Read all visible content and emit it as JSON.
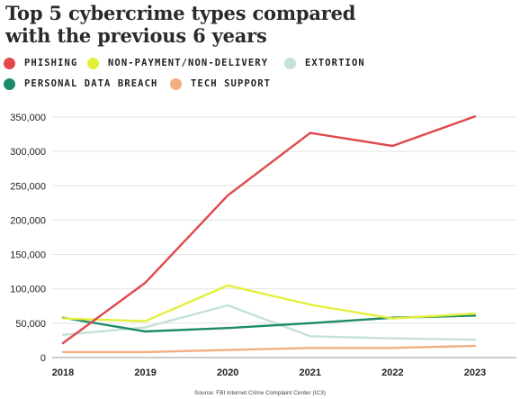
{
  "chart_data": {
    "type": "line",
    "title_lines": [
      "Top 5 cybercrime types compared",
      "with the previous 6 years"
    ],
    "source": "Source: FBI Internet Crime Complaint Center (IC3)",
    "x": [
      "2018",
      "2019",
      "2020",
      "2021",
      "2022",
      "2023"
    ],
    "ylim": [
      0,
      350000
    ],
    "yticks": [
      0,
      50000,
      100000,
      150000,
      200000,
      250000,
      300000,
      350000
    ],
    "ytick_labels": [
      "0",
      "50,000",
      "100,000",
      "150,000",
      "200,000",
      "250,000",
      "300,000",
      "350,000"
    ],
    "grid": true,
    "legend_position": "top",
    "series": [
      {
        "name": "PHISHING",
        "color": "#e0484c",
        "values": [
          21000,
          109000,
          236000,
          327000,
          308000,
          351000
        ]
      },
      {
        "name": "NON-PAYMENT/NON-DELIVERY",
        "color": "#e4ef3a",
        "values": [
          57000,
          53000,
          105000,
          77000,
          57000,
          64000
        ]
      },
      {
        "name": "EXTORTION",
        "color": "#c6e1d9",
        "values": [
          33000,
          44000,
          76000,
          31000,
          28000,
          26000
        ]
      },
      {
        "name": "PERSONAL DATA BREACH",
        "color": "#1d8a6a",
        "values": [
          58000,
          38000,
          43000,
          50000,
          58000,
          61000
        ]
      },
      {
        "name": "TECH SUPPORT",
        "color": "#f3ad82",
        "values": [
          8000,
          8000,
          11000,
          14000,
          14000,
          17000
        ]
      }
    ]
  }
}
